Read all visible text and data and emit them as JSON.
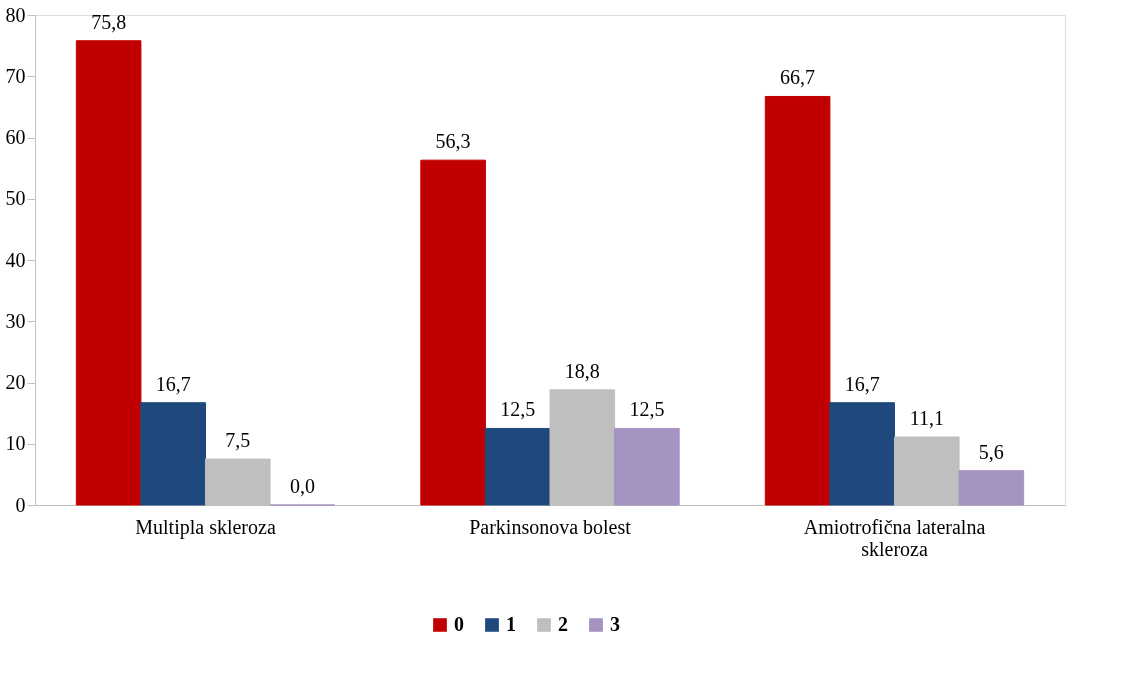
{
  "chart_data": {
    "type": "bar",
    "categories": [
      "Multipla skleroza",
      "Parkinsonova bolest",
      "Amiotrofična lateralna skleroza"
    ],
    "series": [
      {
        "name": "0",
        "color": "#c00000",
        "values": [
          75.8,
          56.3,
          66.7
        ],
        "value_labels": [
          "75,8",
          "56,3",
          "66,7"
        ]
      },
      {
        "name": "1",
        "color": "#1f497d",
        "values": [
          16.7,
          12.5,
          16.7
        ],
        "value_labels": [
          "16,7",
          "12,5",
          "16,7"
        ]
      },
      {
        "name": "2",
        "color": "#bfbfbf",
        "values": [
          7.5,
          18.8,
          11.1
        ],
        "value_labels": [
          "7,5",
          "18,8",
          "11,1"
        ]
      },
      {
        "name": "3",
        "color": "#a593c2",
        "values": [
          0.0,
          12.5,
          5.6
        ],
        "value_labels": [
          "0,0",
          "12,5",
          "5,6"
        ]
      }
    ],
    "ylim": [
      0,
      80
    ],
    "yticks": [
      0,
      10,
      20,
      30,
      40,
      50,
      60,
      70,
      80
    ],
    "grid": false,
    "legend": "bottom"
  }
}
